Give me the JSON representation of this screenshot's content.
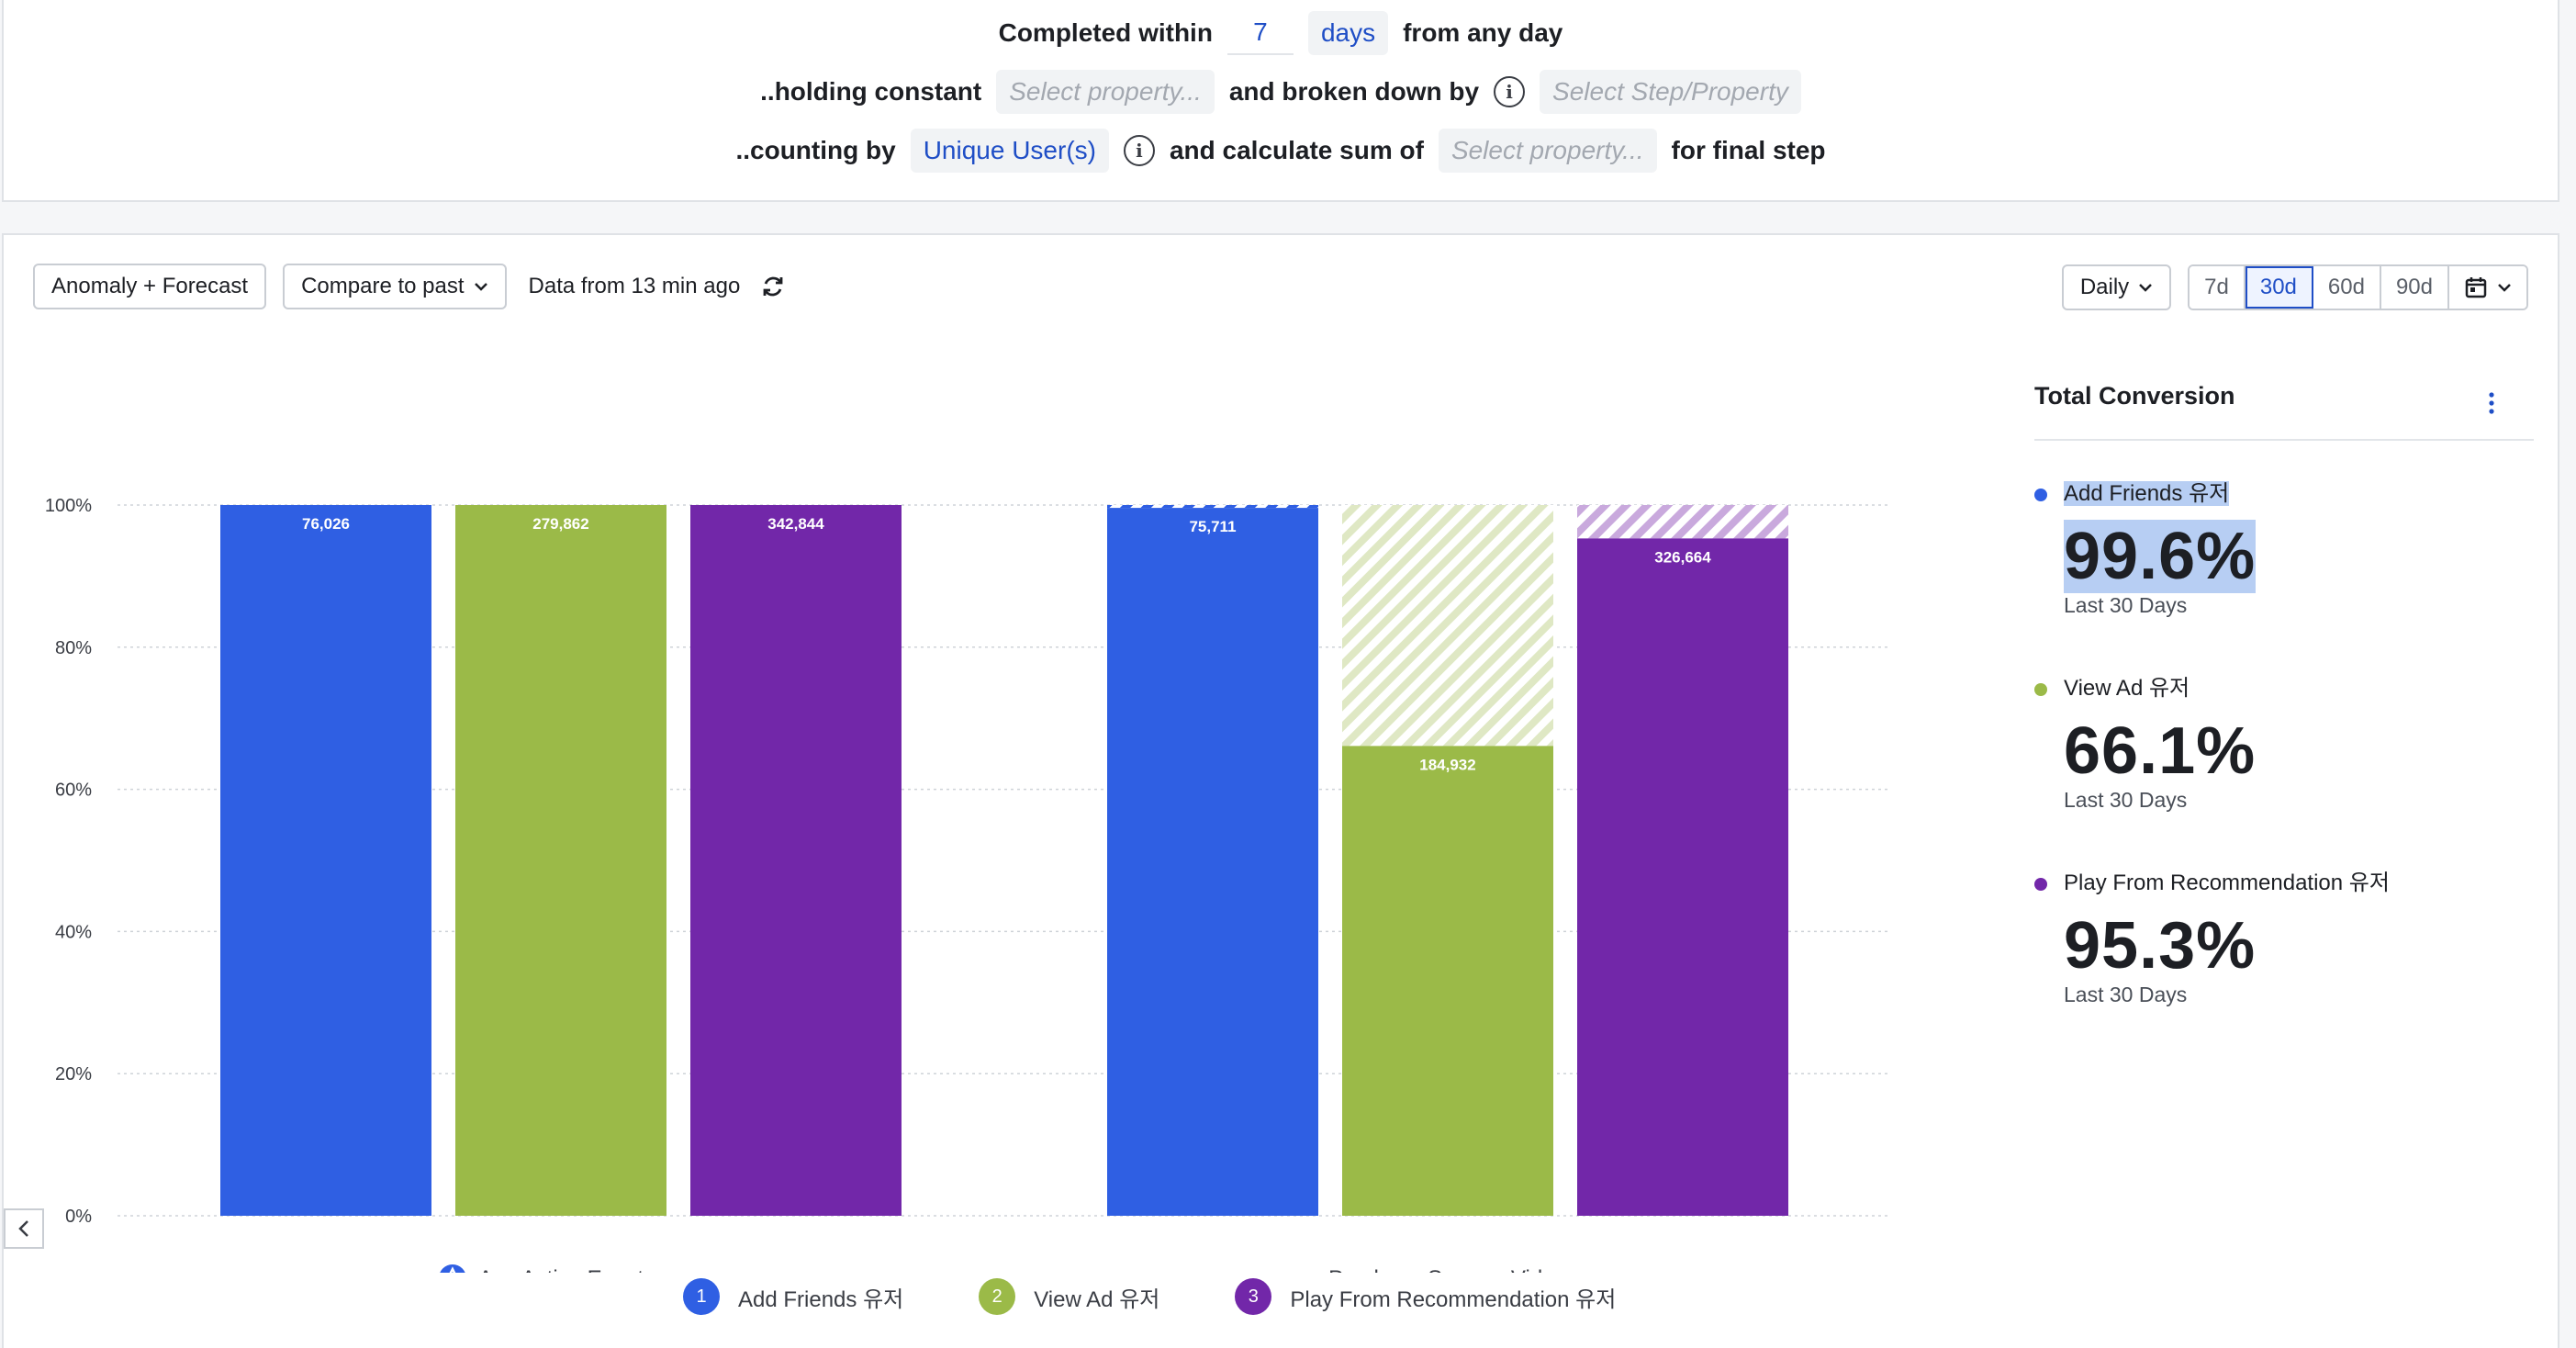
{
  "criteria": {
    "row1": {
      "prefix": "Completed within",
      "window_value": "7",
      "window_unit": "days",
      "suffix": "from any day"
    },
    "row2": {
      "prefix": "..holding constant",
      "property_placeholder": "Select property...",
      "middle": "and broken down by",
      "breakdown_placeholder": "Select Step/Property"
    },
    "row3": {
      "prefix": "..counting by",
      "count_value": "Unique User(s)",
      "middle": "and calculate sum of",
      "sum_placeholder": "Select property...",
      "suffix": "for final step"
    }
  },
  "toolbar": {
    "anomaly_label": "Anomaly + Forecast",
    "compare_label": "Compare to past",
    "status_text": "Data from 13 min ago"
  },
  "range": {
    "interval_label": "Daily",
    "options": [
      "7d",
      "30d",
      "60d",
      "90d"
    ],
    "selected": "30d"
  },
  "colors": {
    "blue": "#2f5fe3",
    "green": "#9bba48",
    "purple": "#7227a9",
    "green_hatch": "#dfe8c4",
    "purple_hatch": "#c9a9dd"
  },
  "chart_data": {
    "type": "bar",
    "ylim": [
      0,
      100
    ],
    "yticks": [
      "0%",
      "20%",
      "40%",
      "60%",
      "80%",
      "100%"
    ],
    "categories": [
      "Any Active Event",
      "Purchase Song or Video"
    ],
    "series": [
      {
        "name": "Add Friends 유저",
        "values": [
          100,
          99.6
        ],
        "labels": [
          "76,026",
          "75,711"
        ]
      },
      {
        "name": "View Ad 유저",
        "values": [
          100,
          66.1
        ],
        "labels": [
          "279,862",
          "184,932"
        ]
      },
      {
        "name": "Play From Recommendation 유저",
        "values": [
          100,
          95.3
        ],
        "labels": [
          "342,844",
          "326,664"
        ]
      }
    ]
  },
  "legend": [
    {
      "num": "1",
      "label": "Add Friends 유저"
    },
    {
      "num": "2",
      "label": "View Ad 유저"
    },
    {
      "num": "3",
      "label": "Play From Recommendation 유저"
    }
  ],
  "side_panel": {
    "title": "Total Conversion",
    "metrics": [
      {
        "name": "Add Friends 유저",
        "value": "99.6%",
        "period": "Last 30 Days"
      },
      {
        "name": "View Ad 유저",
        "value": "66.1%",
        "period": "Last 30 Days"
      },
      {
        "name": "Play From Recommendation 유저",
        "value": "95.3%",
        "period": "Last 30 Days"
      }
    ]
  }
}
